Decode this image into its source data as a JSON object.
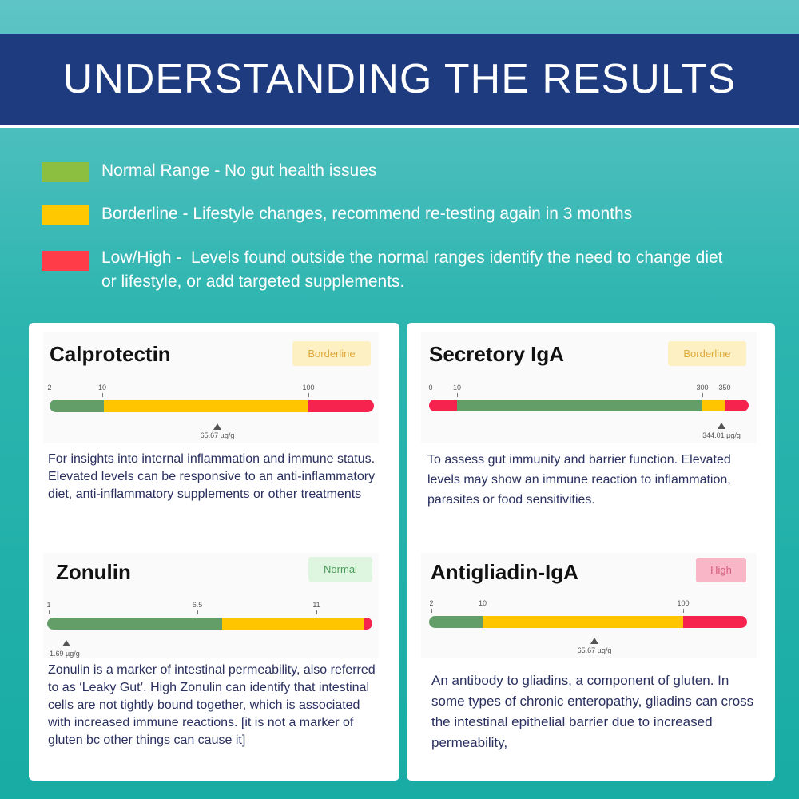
{
  "header": {
    "title": "UNDERSTANDING THE RESULTS"
  },
  "legend": [
    {
      "text": "Normal Range - No gut health issues"
    },
    {
      "text": "Borderline - Lifestyle changes, recommend re-testing again in 3 months"
    },
    {
      "text": "Low/High -  Levels found outside the normal ranges identify the need to change diet or lifestyle, or add targeted supplements."
    }
  ],
  "cards": [
    {
      "name": "Calprotectin",
      "status": "Borderline",
      "ticks": [
        "2",
        "10",
        "100"
      ],
      "marker_label": "65.67 µg/g",
      "description": "For insights into internal inflammation and immune status. Elevated levels can be responsive to an anti-inflammatory diet, anti-inflammatory supplements or other treatments"
    },
    {
      "name": "Secretory IgA",
      "status": "Borderline",
      "ticks": [
        "0",
        "10",
        "300",
        "350"
      ],
      "marker_label": "344.01 µg/g",
      "description": "To assess gut immunity and barrier function. Elevated levels may show an immune reaction to inflammation, parasites or food sensitivities."
    },
    {
      "name": "Zonulin",
      "status": "Normal",
      "ticks": [
        "1",
        "6.5",
        "11"
      ],
      "marker_label": "1.69 µg/g",
      "description": "Zonulin is a marker of intestinal permeability, also referred to as ‘Leaky Gut’. High Zonulin can identify that intestinal cells are not tightly bound together, which is associated with increased immune reactions. [it is not a marker of gluten bc other things can cause it]"
    },
    {
      "name": "Antigliadin-IgA",
      "status": "High",
      "ticks": [
        "2",
        "10",
        "100"
      ],
      "marker_label": "65.67 µg/g",
      "description": "An antibody to gliadins, a component of gluten. In some types of chronic enteropathy, gliadins can cross the intestinal epithelial barrier due to increased permeability,"
    }
  ]
}
